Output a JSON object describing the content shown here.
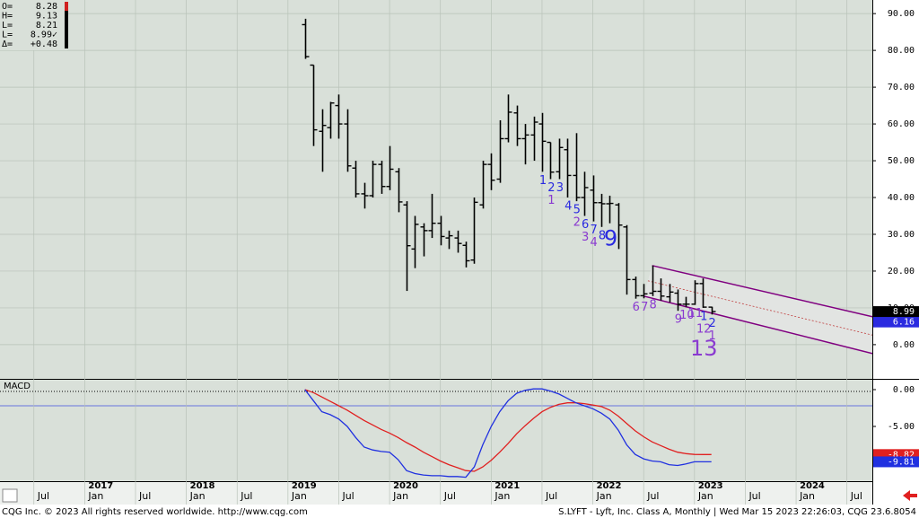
{
  "chart_data": [
    {
      "type": "ohlc",
      "x": [
        "2019-03",
        "2019-04",
        "2019-05",
        "2019-06",
        "2019-07",
        "2019-08",
        "2019-09",
        "2019-10",
        "2019-11",
        "2019-12",
        "2020-01",
        "2020-02",
        "2020-03",
        "2020-04",
        "2020-05",
        "2020-06",
        "2020-07",
        "2020-08",
        "2020-09",
        "2020-10",
        "2020-11",
        "2020-12",
        "2021-01",
        "2021-02",
        "2021-03",
        "2021-04",
        "2021-05",
        "2021-06",
        "2021-07",
        "2021-08",
        "2021-09",
        "2021-10",
        "2021-11",
        "2021-12",
        "2022-01",
        "2022-02",
        "2022-03",
        "2022-04",
        "2022-05",
        "2022-06",
        "2022-07",
        "2022-08",
        "2022-09",
        "2022-10",
        "2022-11",
        "2022-12",
        "2023-01",
        "2023-02",
        "2023-03"
      ],
      "open": [
        87,
        76,
        58,
        59,
        65,
        60,
        48,
        41,
        40.5,
        49,
        43,
        47,
        38,
        26,
        32,
        31,
        33,
        29,
        29,
        27,
        23,
        38,
        49,
        45,
        56,
        63,
        56,
        57,
        60,
        55,
        47,
        53,
        46,
        40,
        42,
        38.6,
        38.3,
        38,
        32,
        17.7,
        13.3,
        14,
        14.5,
        13,
        14,
        11,
        11,
        16.6,
        10.2
      ],
      "high": [
        88.6,
        76,
        64,
        66,
        68,
        64,
        50,
        44,
        50,
        50,
        54,
        48,
        39,
        35,
        33,
        41,
        35,
        31,
        31,
        28,
        40,
        50,
        52,
        61,
        68,
        65,
        60,
        62,
        63,
        55,
        56,
        56,
        57.5,
        47,
        46,
        41,
        40.5,
        38.5,
        32.5,
        18.5,
        16.5,
        21.5,
        18,
        16.5,
        15,
        13,
        17.5,
        18,
        10.3
      ],
      "low": [
        77.7,
        54,
        47,
        56,
        56,
        47,
        40,
        37,
        40,
        41,
        42,
        36,
        14.6,
        20.8,
        24,
        29,
        27,
        26,
        25,
        21,
        22,
        37,
        42,
        44,
        55,
        54,
        49,
        50,
        47,
        45,
        45,
        40,
        39,
        35,
        33.5,
        32,
        33,
        26,
        13.6,
        12.5,
        12.6,
        13.2,
        12,
        11.5,
        9.2,
        10.3,
        10.8,
        10,
        8.2
      ],
      "close": [
        78.3,
        58.4,
        59.6,
        65.7,
        60,
        48.6,
        41,
        40.5,
        49,
        43,
        47.7,
        38.8,
        26.9,
        32.7,
        31,
        33,
        29.4,
        29.6,
        27.5,
        22.8,
        38.7,
        49,
        44.7,
        56,
        63.2,
        56,
        57,
        60.5,
        55.3,
        46.9,
        53.6,
        46,
        40,
        42.7,
        38.6,
        38.3,
        38.4,
        32.5,
        17.7,
        13.3,
        13.8,
        14.5,
        13.2,
        14.3,
        11,
        11,
        16.6,
        10.2,
        8.99
      ],
      "close_labels": [
        null,
        null,
        null,
        null,
        null,
        null,
        null,
        null,
        null,
        null,
        null,
        null,
        null,
        null,
        null,
        null,
        null,
        null,
        null,
        null,
        null,
        null,
        null,
        null,
        null,
        null,
        null,
        null,
        null,
        null,
        null,
        null,
        null,
        null,
        null,
        null,
        null,
        null,
        null,
        null,
        null,
        null,
        null,
        null,
        null,
        null,
        null,
        null,
        "8.99"
      ],
      "color": "#000000",
      "xlim": [
        "2016-03",
        "2024-10"
      ],
      "xticks": [
        {
          "value": "2016-07",
          "label": "Jul"
        },
        {
          "value": "2017-01",
          "label": "Jan"
        },
        {
          "value": "2017-07",
          "label": "Jul"
        },
        {
          "value": "2018-01",
          "label": "Jan"
        },
        {
          "value": "2018-07",
          "label": "Jul"
        },
        {
          "value": "2019-01",
          "label": "Jan"
        },
        {
          "value": "2019-07",
          "label": "Jul"
        },
        {
          "value": "2020-01",
          "label": "Jan"
        },
        {
          "value": "2020-07",
          "label": "Jul"
        },
        {
          "value": "2021-01",
          "label": "Jan"
        },
        {
          "value": "2021-07",
          "label": "Jul"
        },
        {
          "value": "2022-01",
          "label": "Jan"
        },
        {
          "value": "2022-07",
          "label": "Jul"
        },
        {
          "value": "2023-01",
          "label": "Jan"
        },
        {
          "value": "2023-07",
          "label": "Jul"
        },
        {
          "value": "2024-01",
          "label": "Jan"
        },
        {
          "value": "2024-07",
          "label": "Jul"
        }
      ],
      "year_ticks": [
        {
          "value": "2017-01",
          "label": "2017"
        },
        {
          "value": "2018-01",
          "label": "2018"
        },
        {
          "value": "2019-01",
          "label": "2019"
        },
        {
          "value": "2020-01",
          "label": "2020"
        },
        {
          "value": "2021-01",
          "label": "2021"
        },
        {
          "value": "2022-01",
          "label": "2022"
        },
        {
          "value": "2023-01",
          "label": "2023"
        },
        {
          "value": "2024-01",
          "label": "2024"
        }
      ],
      "ylim": [
        -9.3,
        93.7
      ],
      "yticks": [
        {
          "value": 0,
          "label": "0.00"
        },
        {
          "value": 10,
          "label": "10.00"
        },
        {
          "value": 20,
          "label": "20.00"
        },
        {
          "value": 30,
          "label": "30.00"
        },
        {
          "value": 40,
          "label": "40.00"
        },
        {
          "value": 50,
          "label": "50.00"
        },
        {
          "value": 60,
          "label": "60.00"
        },
        {
          "value": 70,
          "label": "70.00"
        },
        {
          "value": 80,
          "label": "80.00"
        },
        {
          "value": 90,
          "label": "90.00"
        }
      ],
      "grid": true,
      "readout": [
        {
          "name": "O=",
          "value": 8.28
        },
        {
          "name": "H=",
          "value": 9.13
        },
        {
          "name": "L=",
          "value": 8.21
        },
        {
          "name": "L=",
          "value": 8.99,
          "label": "8.99✓"
        },
        {
          "name": "Δ=",
          "value": 0.48,
          "label": "+0.48"
        }
      ],
      "annotations": [
        {
          "x": "2021-07",
          "text": "1",
          "color": "#2a2ae0"
        },
        {
          "x": "2021-08",
          "text": "2",
          "color": "#2a2ae0"
        },
        {
          "x": "2021-08",
          "text": "1",
          "color": "#8a3ad0"
        },
        {
          "x": "2021-09",
          "text": "3",
          "color": "#2a2ae0"
        },
        {
          "x": "2021-10",
          "text": "4",
          "color": "#2a2ae0"
        },
        {
          "x": "2021-11",
          "text": "5",
          "color": "#2a2ae0"
        },
        {
          "x": "2021-11",
          "text": "2",
          "color": "#8a3ad0"
        },
        {
          "x": "2021-12",
          "text": "6",
          "color": "#2a2ae0"
        },
        {
          "x": "2021-12",
          "text": "3",
          "color": "#8a3ad0"
        },
        {
          "x": "2022-01",
          "text": "7",
          "color": "#2a2ae0"
        },
        {
          "x": "2022-01",
          "text": "4",
          "color": "#8a3ad0"
        },
        {
          "x": "2022-02",
          "text": "8",
          "color": "#2a2ae0"
        },
        {
          "x": "2022-03",
          "text": "9",
          "color": "#2a2ae0",
          "size": "large"
        },
        {
          "x": "2022-06",
          "text": "6",
          "color": "#8a3ad0"
        },
        {
          "x": "2022-07",
          "text": "7",
          "color": "#8a3ad0"
        },
        {
          "x": "2022-08",
          "text": "8",
          "color": "#8a3ad0"
        },
        {
          "x": "2022-11",
          "text": "9",
          "color": "#8a3ad0"
        },
        {
          "x": "2022-12",
          "text": "10",
          "color": "#8a3ad0"
        },
        {
          "x": "2023-01",
          "text": "11",
          "color": "#8a3ad0"
        },
        {
          "x": "2023-02",
          "text": "1",
          "color": "#2a2ae0"
        },
        {
          "x": "2023-02",
          "text": "12",
          "color": "#8a3ad0"
        },
        {
          "x": "2023-02",
          "text": "13",
          "color": "#8a3ad0",
          "size": "large"
        },
        {
          "x": "2023-03",
          "text": "2",
          "color": "#2a2ae0"
        },
        {
          "x": "2023-03",
          "text": "1",
          "color": "#8a3ad0"
        }
      ],
      "channel": {
        "color": "#800080",
        "midline_color": "#c04040",
        "upper": [
          [
            "2022-08",
            21.5
          ],
          [
            "2024-10",
            7.6
          ]
        ],
        "lower": [
          [
            "2022-07",
            13.2
          ],
          [
            "2024-10",
            -2.4
          ]
        ],
        "marker": {
          "value": 6.16,
          "label": "6.16",
          "color": "#2a2ae0"
        }
      }
    },
    {
      "type": "line",
      "title": "MACD",
      "x": [
        "2019-03",
        "2019-04",
        "2019-05",
        "2019-06",
        "2019-07",
        "2019-08",
        "2019-09",
        "2019-10",
        "2019-11",
        "2019-12",
        "2020-01",
        "2020-02",
        "2020-03",
        "2020-04",
        "2020-05",
        "2020-06",
        "2020-07",
        "2020-08",
        "2020-09",
        "2020-10",
        "2020-11",
        "2020-12",
        "2021-01",
        "2021-02",
        "2021-03",
        "2021-04",
        "2021-05",
        "2021-06",
        "2021-07",
        "2021-08",
        "2021-09",
        "2021-10",
        "2021-11",
        "2021-12",
        "2022-01",
        "2022-02",
        "2022-03",
        "2022-04",
        "2022-05",
        "2022-06",
        "2022-07",
        "2022-08",
        "2022-09",
        "2022-10",
        "2022-11",
        "2022-12",
        "2023-01",
        "2023-02",
        "2023-03"
      ],
      "xlim": [
        "2016-03",
        "2024-10"
      ],
      "ylim": [
        -12.44,
        1.34
      ],
      "yticks": [
        {
          "value": 0,
          "label": "0.00"
        },
        {
          "value": -5,
          "label": "-5.00"
        }
      ],
      "series": [
        {
          "color": "#e02020",
          "values": [
            0,
            -0.4,
            -1,
            -1.6,
            -2.2,
            -2.8,
            -3.5,
            -4.2,
            -4.8,
            -5.4,
            -5.9,
            -6.5,
            -7.2,
            -7.8,
            -8.5,
            -9.1,
            -9.7,
            -10.2,
            -10.6,
            -11,
            -11.1,
            -10.5,
            -9.6,
            -8.5,
            -7.3,
            -6,
            -4.9,
            -3.9,
            -3,
            -2.4,
            -2,
            -1.8,
            -1.8,
            -1.9,
            -2.1,
            -2.3,
            -2.8,
            -3.6,
            -4.6,
            -5.6,
            -6.4,
            -7.1,
            -7.6,
            -8.1,
            -8.5,
            -8.7,
            -8.8,
            -8.82,
            -8.82
          ],
          "value_labels": [
            null,
            null,
            null,
            null,
            null,
            null,
            null,
            null,
            null,
            null,
            null,
            null,
            null,
            null,
            null,
            null,
            null,
            null,
            null,
            null,
            null,
            null,
            null,
            null,
            null,
            null,
            null,
            null,
            null,
            null,
            null,
            null,
            null,
            null,
            null,
            null,
            null,
            null,
            null,
            null,
            null,
            null,
            null,
            null,
            null,
            null,
            null,
            null,
            "-8.82"
          ]
        },
        {
          "color": "#2030e0",
          "values": [
            0,
            -1.5,
            -3,
            -3.4,
            -4,
            -5,
            -6.5,
            -7.8,
            -8.2,
            -8.4,
            -8.5,
            -9.5,
            -11,
            -11.4,
            -11.6,
            -11.7,
            -11.7,
            -11.8,
            -11.8,
            -11.9,
            -10.5,
            -7.5,
            -5,
            -3,
            -1.5,
            -0.5,
            -0.1,
            0.1,
            0.1,
            -0.2,
            -0.6,
            -1.2,
            -1.8,
            -2.2,
            -2.6,
            -3.2,
            -4,
            -5.5,
            -7.5,
            -8.8,
            -9.4,
            -9.7,
            -9.8,
            -10.2,
            -10.3,
            -10.1,
            -9.8,
            -9.8,
            -9.81
          ],
          "value_labels": [
            null,
            null,
            null,
            null,
            null,
            null,
            null,
            null,
            null,
            null,
            null,
            null,
            null,
            null,
            null,
            null,
            null,
            null,
            null,
            null,
            null,
            null,
            null,
            null,
            null,
            null,
            null,
            null,
            null,
            null,
            null,
            null,
            null,
            null,
            null,
            null,
            null,
            null,
            null,
            null,
            null,
            null,
            null,
            null,
            null,
            null,
            null,
            null,
            "-9.81"
          ]
        }
      ]
    }
  ],
  "footer": {
    "left": "CQG Inc. © 2023 All rights reserved worldwide. http://www.cqg.com",
    "right": "S.LYFT - Lyft, Inc. Class A, Monthly | Wed Mar 15 2023 22:26:03, CQG 23.6.8054"
  }
}
